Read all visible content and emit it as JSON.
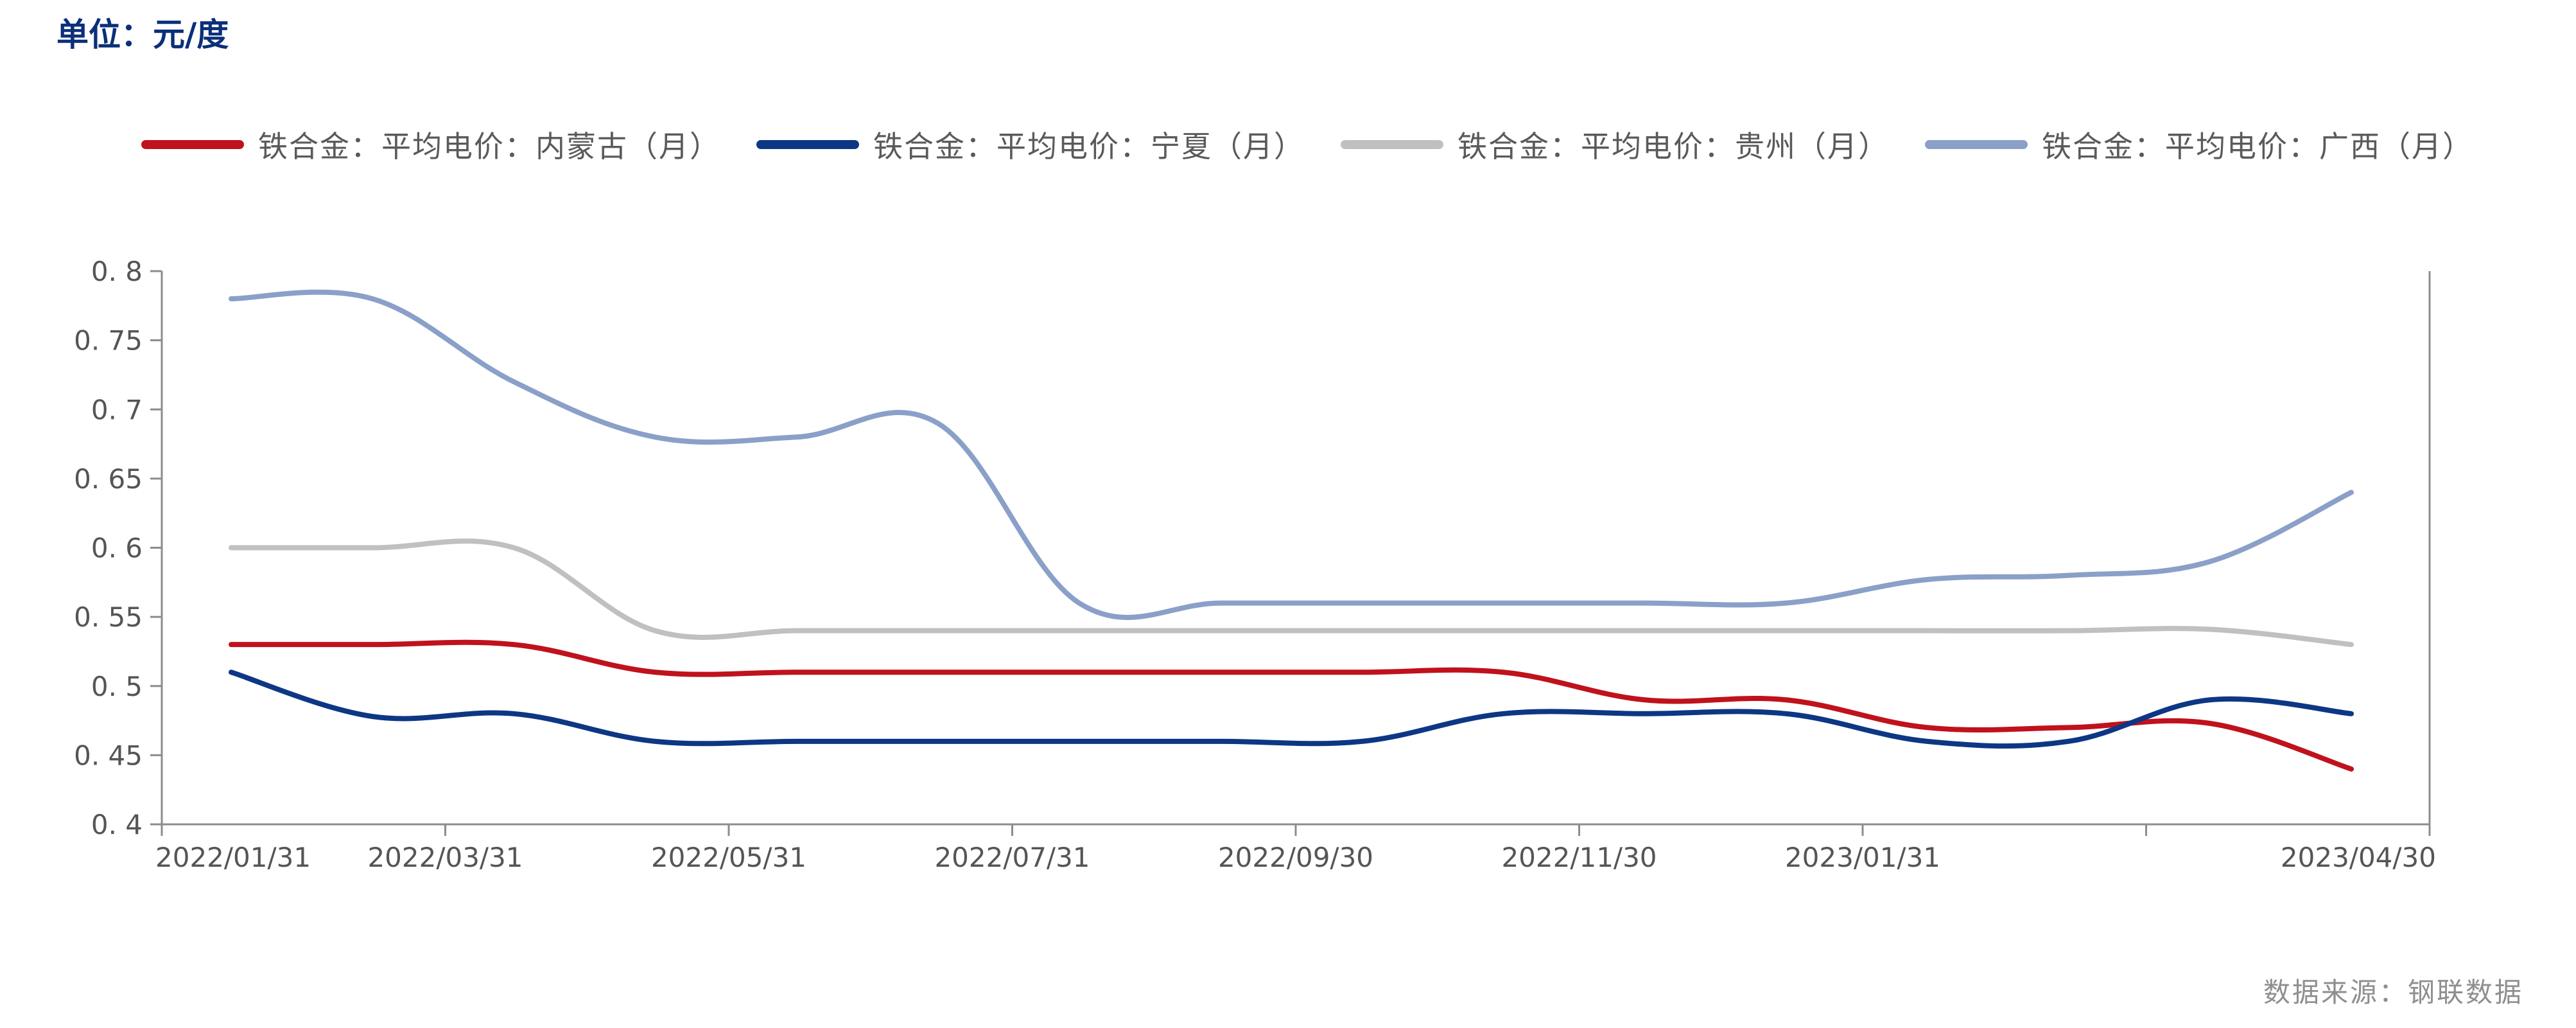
{
  "unit_label": "单位：元/度",
  "source": "数据来源：钢联数据",
  "chart_data": {
    "type": "line",
    "title": "",
    "xlabel": "",
    "ylabel": "",
    "ylim": [
      0.4,
      0.8
    ],
    "yticks": [
      "0.8",
      "0.75",
      "0.7",
      "0.65",
      "0.6",
      "0.55",
      "0.5",
      "0.45",
      "0.4"
    ],
    "x_tick_labels": [
      "2022/01/31",
      "2022/03/31",
      "2022/05/31",
      "2022/07/31",
      "2022/09/30",
      "2022/11/30",
      "2023/01/31",
      "",
      "2023/04/30"
    ],
    "legend_position": "top",
    "grid": false,
    "x": [
      "2022/01/31",
      "2022/02/28",
      "2022/03/31",
      "2022/04/30",
      "2022/05/31",
      "2022/06/30",
      "2022/07/31",
      "2022/08/31",
      "2022/09/30",
      "2022/10/31",
      "2022/11/30",
      "2022/12/31",
      "2023/01/31",
      "2023/02/28",
      "2023/03/31",
      "2023/04/30"
    ],
    "series": [
      {
        "name": "铁合金：平均电价：内蒙古（月）",
        "color": "#c0121c",
        "values": [
          0.53,
          0.53,
          0.53,
          0.51,
          0.51,
          0.51,
          0.51,
          0.51,
          0.51,
          0.51,
          0.49,
          0.49,
          0.47,
          0.47,
          0.473,
          0.44
        ]
      },
      {
        "name": "铁合金：平均电价：宁夏（月）",
        "color": "#0d3785",
        "values": [
          0.51,
          0.478,
          0.48,
          0.46,
          0.46,
          0.46,
          0.46,
          0.46,
          0.46,
          0.48,
          0.48,
          0.48,
          0.46,
          0.46,
          0.49,
          0.48
        ]
      },
      {
        "name": "铁合金：平均电价：贵州（月）",
        "color": "#c0c0c0",
        "values": [
          0.6,
          0.6,
          0.6,
          0.54,
          0.54,
          0.54,
          0.54,
          0.54,
          0.54,
          0.54,
          0.54,
          0.54,
          0.54,
          0.54,
          0.541,
          0.53
        ]
      },
      {
        "name": "铁合金：平均电价：广西（月）",
        "color": "#8aa0c8",
        "values": [
          0.78,
          0.78,
          0.72,
          0.68,
          0.68,
          0.69,
          0.56,
          0.56,
          0.56,
          0.56,
          0.56,
          0.56,
          0.577,
          0.58,
          0.59,
          0.64
        ]
      }
    ]
  }
}
